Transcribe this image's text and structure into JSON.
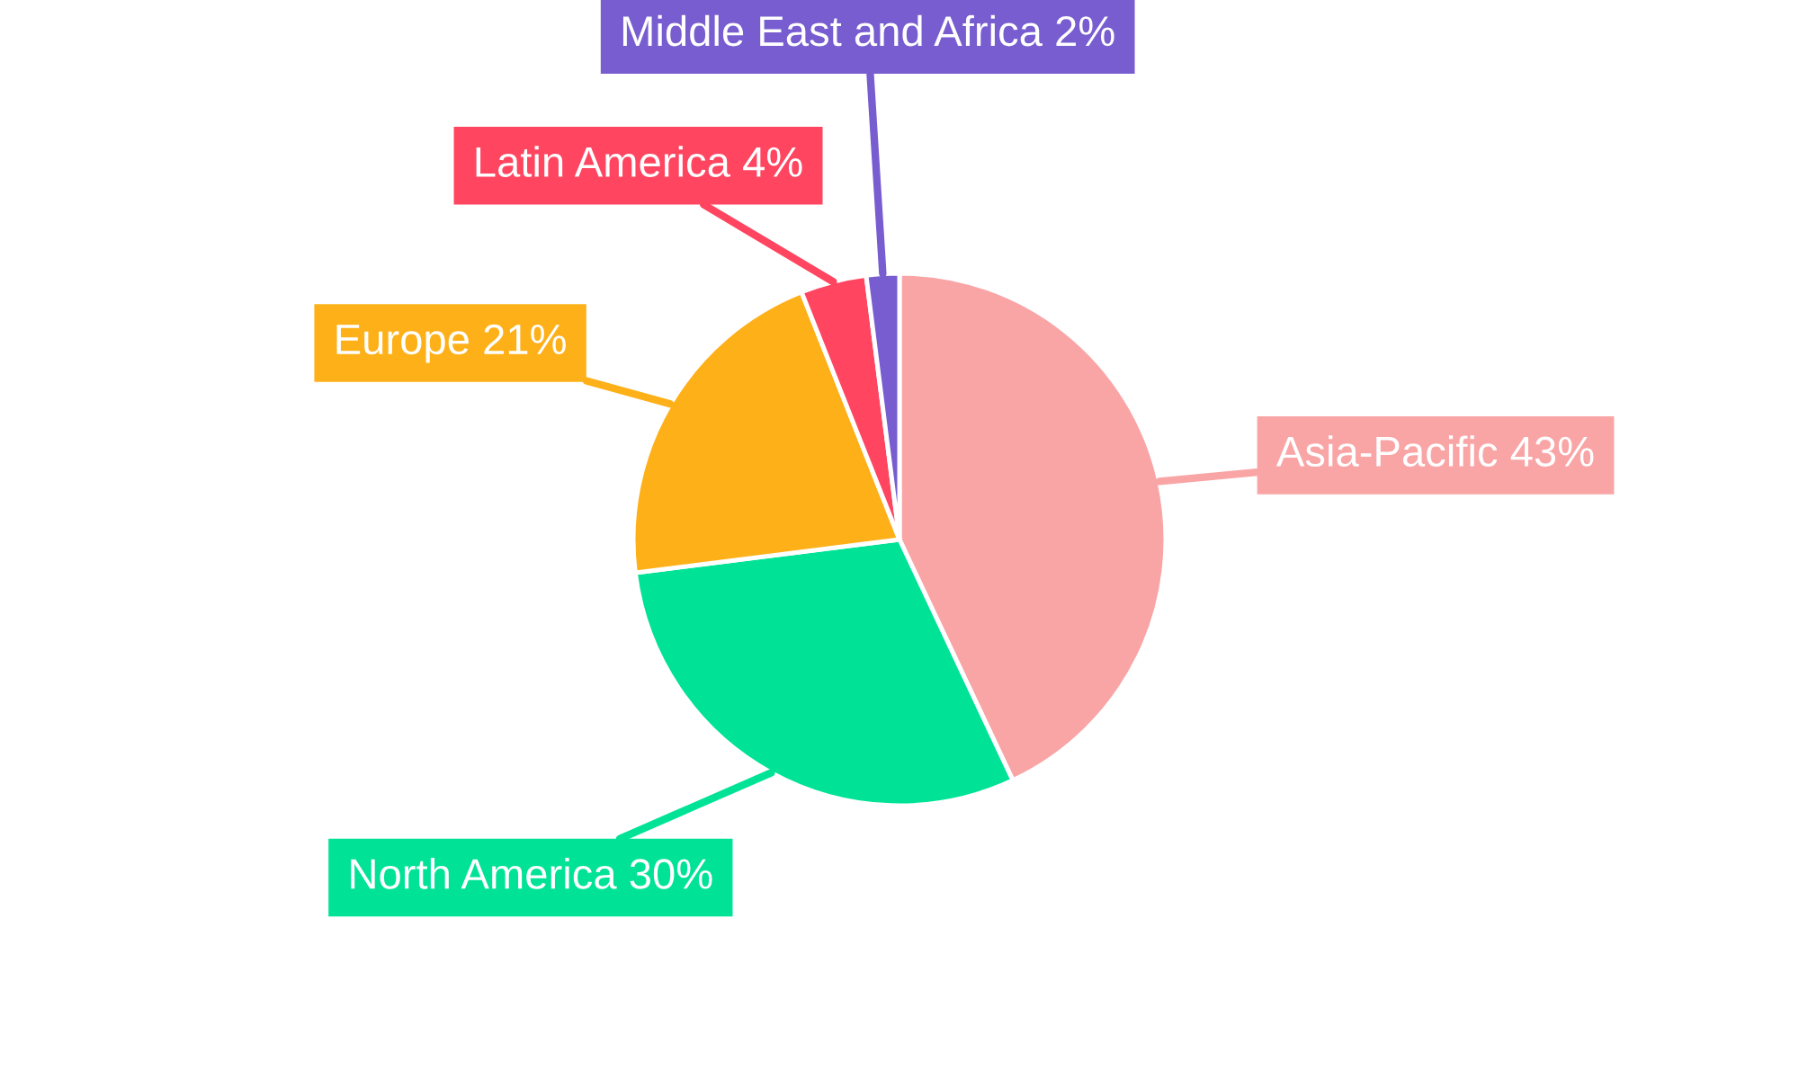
{
  "chart_data": {
    "type": "pie",
    "categories": [
      "Asia-Pacific",
      "North America",
      "Europe",
      "Latin America",
      "Middle East and Africa"
    ],
    "values": [
      43,
      30,
      21,
      4,
      2
    ],
    "value_labels": [
      "43%",
      "30%",
      "21%",
      "4%",
      "2%"
    ],
    "colors": [
      "#f9a5a6",
      "#00e396",
      "#feb019",
      "#ff4560",
      "#775dd0"
    ],
    "legend": false
  }
}
